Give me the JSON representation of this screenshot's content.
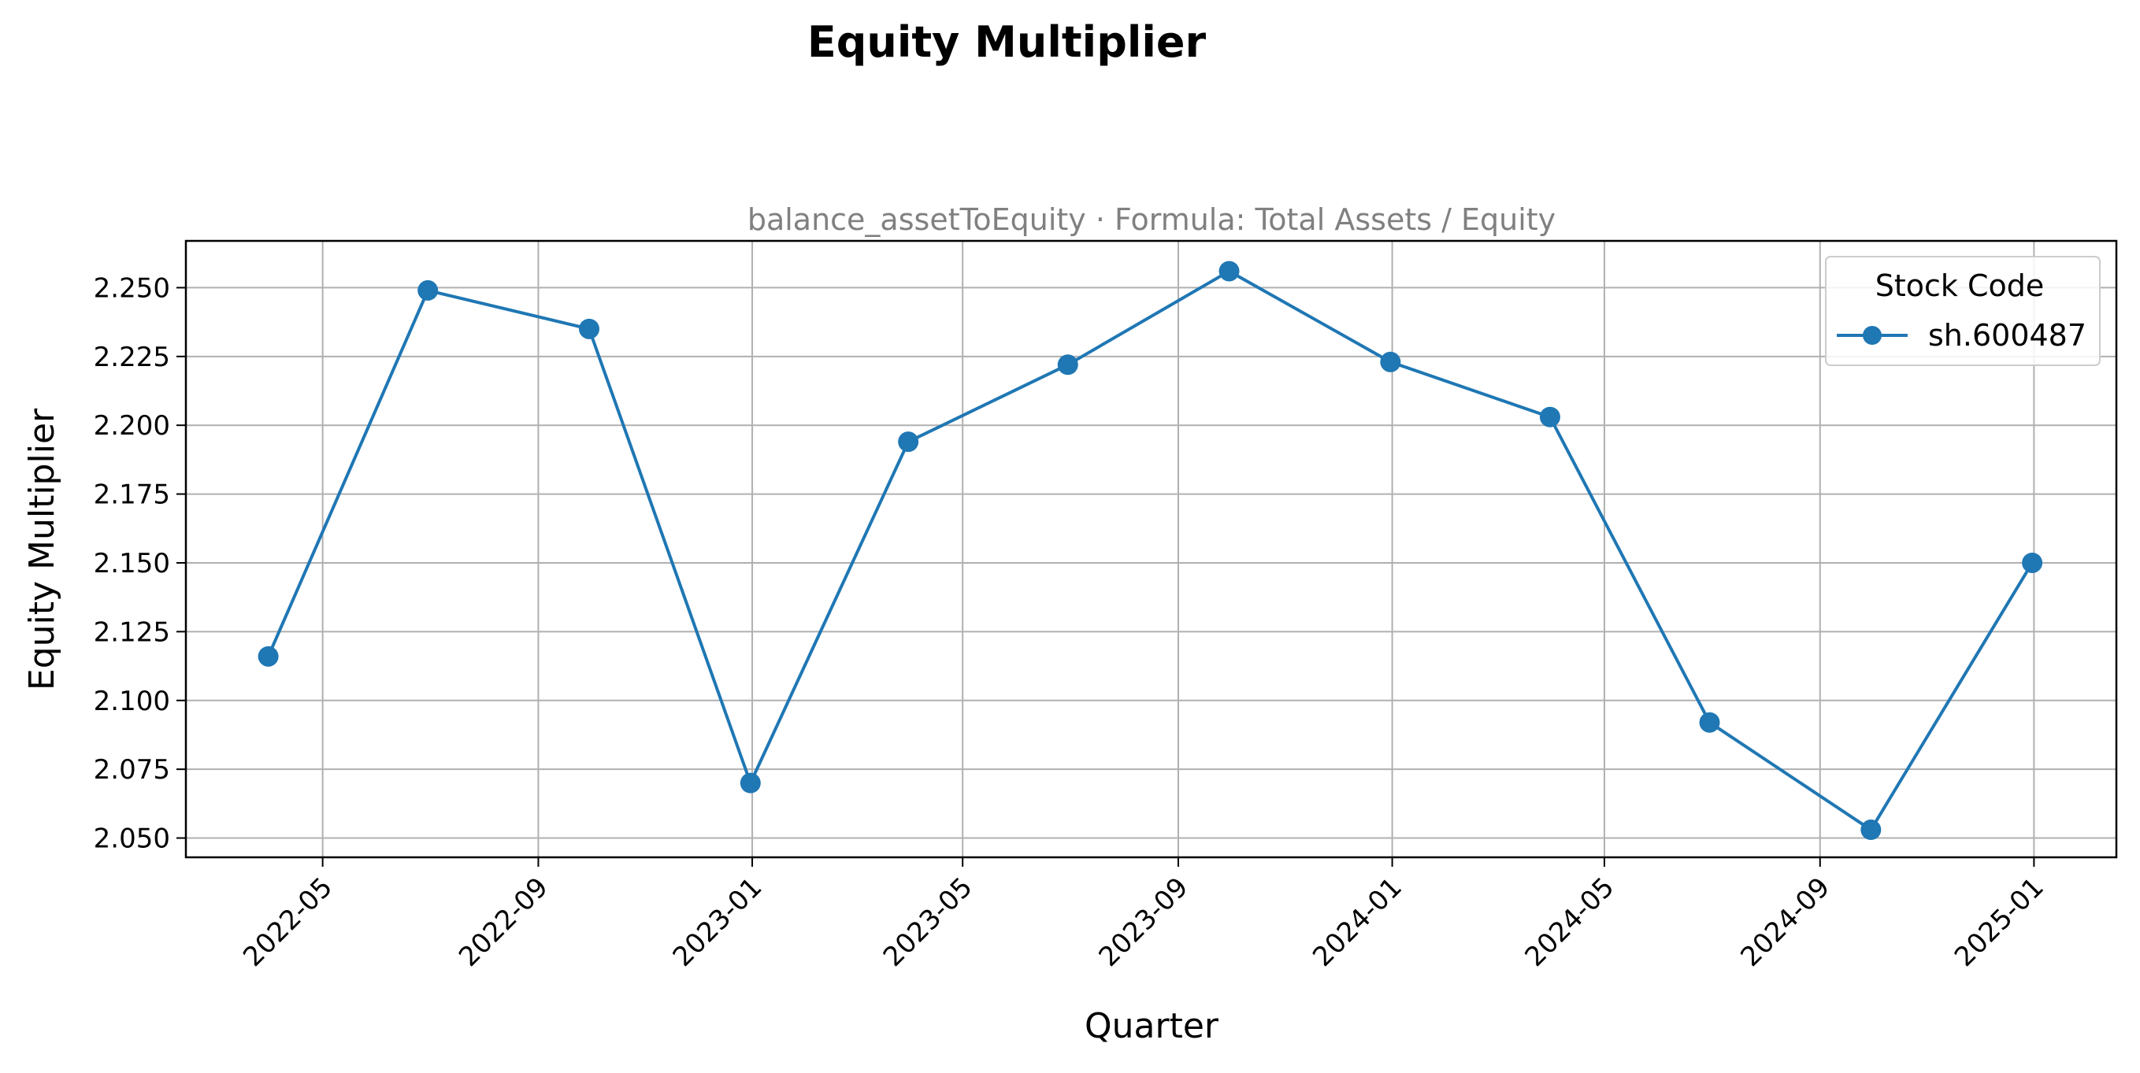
{
  "chart_data": {
    "type": "line",
    "title": "Equity Multiplier",
    "subtitle": "balance_assetToEquity · Formula: Total Assets / Equity",
    "xlabel": "Quarter",
    "ylabel": "Equity Multiplier",
    "x_ticks": [
      "2022-05",
      "2022-09",
      "2023-01",
      "2023-05",
      "2023-09",
      "2024-01",
      "2024-05",
      "2024-09",
      "2025-01"
    ],
    "y_ticks": [
      "2.050",
      "2.075",
      "2.100",
      "2.125",
      "2.150",
      "2.175",
      "2.200",
      "2.225",
      "2.250"
    ],
    "ylim": [
      2.043,
      2.267
    ],
    "xlim": [
      "2022-02-12",
      "2025-02-17"
    ],
    "grid": true,
    "legend": {
      "title": "Stock Code",
      "placement": "top-right"
    },
    "series": [
      {
        "name": "sh.600487",
        "color": "#1f77b4",
        "marker": "circle",
        "points": [
          {
            "x": "2022-03-31",
            "y": 2.116
          },
          {
            "x": "2022-06-30",
            "y": 2.249
          },
          {
            "x": "2022-09-30",
            "y": 2.235
          },
          {
            "x": "2022-12-31",
            "y": 2.07
          },
          {
            "x": "2023-03-31",
            "y": 2.194
          },
          {
            "x": "2023-06-30",
            "y": 2.222
          },
          {
            "x": "2023-09-30",
            "y": 2.256
          },
          {
            "x": "2023-12-31",
            "y": 2.223
          },
          {
            "x": "2024-03-31",
            "y": 2.203
          },
          {
            "x": "2024-06-30",
            "y": 2.092
          },
          {
            "x": "2024-09-30",
            "y": 2.053
          },
          {
            "x": "2024-12-31",
            "y": 2.15
          }
        ]
      }
    ]
  }
}
